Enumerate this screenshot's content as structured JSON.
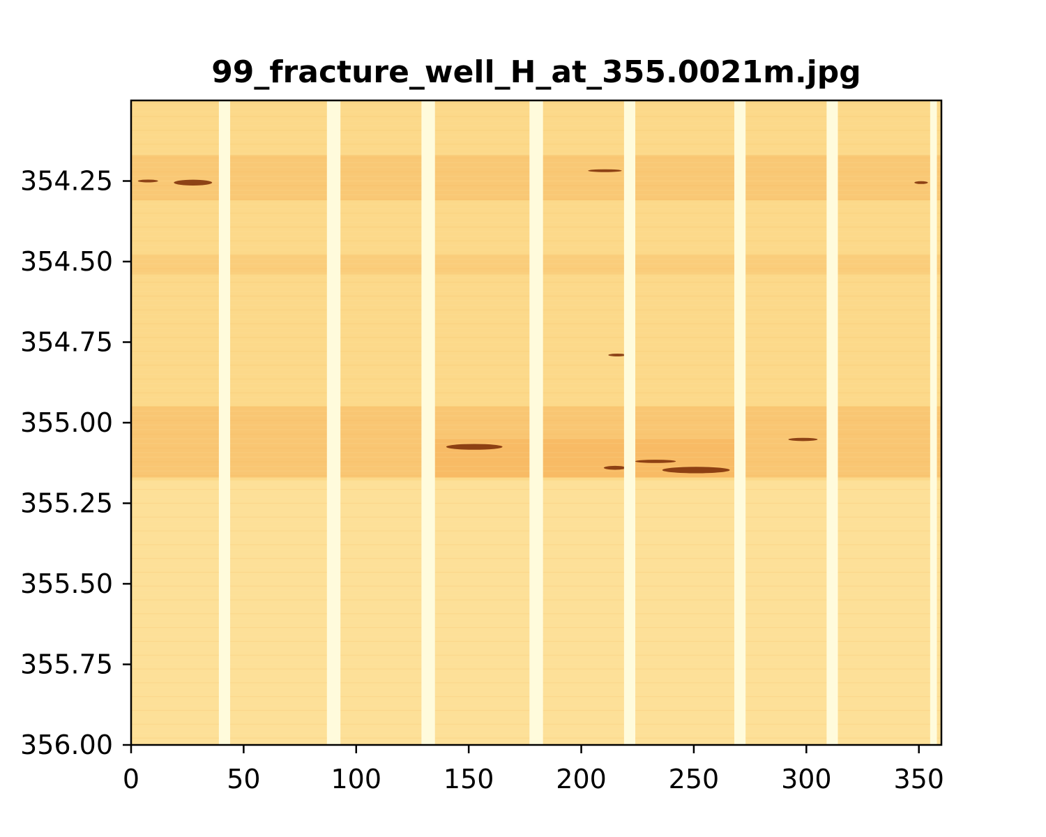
{
  "chart_data": {
    "type": "heatmap",
    "title": "99_fracture_well_H_at_355.0021m.jpg",
    "xlabel": "",
    "ylabel": "",
    "xlim": [
      0,
      360
    ],
    "ylim": [
      356.0,
      354.0
    ],
    "x_ticks": [
      0,
      50,
      100,
      150,
      200,
      250,
      300,
      350
    ],
    "x_tick_labels": [
      "0",
      "50",
      "100",
      "150",
      "200",
      "250",
      "300",
      "350"
    ],
    "y_ticks": [
      354.25,
      354.5,
      354.75,
      355.0,
      355.25,
      355.5,
      355.75,
      356.0
    ],
    "y_tick_labels": [
      "354.25",
      "354.50",
      "354.75",
      "355.00",
      "355.25",
      "355.50",
      "355.75",
      "356.00"
    ],
    "grid": false,
    "colormap": "YlOrBr",
    "colors": {
      "background": "#fcd98a",
      "light": "#fde6a4",
      "gap": "#fffbdc",
      "medium": "#f6b45b",
      "dark": "#7a2a05"
    },
    "pad_gaps": [
      {
        "x0": 39,
        "x1": 44
      },
      {
        "x0": 87,
        "x1": 93
      },
      {
        "x0": 129,
        "x1": 135
      },
      {
        "x0": 177,
        "x1": 183
      },
      {
        "x0": 219,
        "x1": 224
      },
      {
        "x0": 268,
        "x1": 273
      },
      {
        "x0": 309,
        "x1": 314
      },
      {
        "x0": 355,
        "x1": 358
      }
    ],
    "bands": [
      {
        "x0": 0,
        "x1": 360,
        "y0": 354.17,
        "y1": 354.31,
        "tone": "medium",
        "opacity": 0.45
      },
      {
        "x0": 0,
        "x1": 360,
        "y0": 354.48,
        "y1": 354.54,
        "tone": "medium",
        "opacity": 0.3
      },
      {
        "x0": 0,
        "x1": 360,
        "y0": 354.95,
        "y1": 355.17,
        "tone": "medium",
        "opacity": 0.5
      },
      {
        "x0": 130,
        "x1": 270,
        "y0": 355.05,
        "y1": 355.17,
        "tone": "medium",
        "opacity": 0.6
      },
      {
        "x0": 0,
        "x1": 360,
        "y0": 355.18,
        "y1": 356.0,
        "tone": "light",
        "opacity": 0.55
      }
    ],
    "fracture_marks": [
      {
        "x0": 3,
        "x1": 12,
        "y": 354.25,
        "thickness": 0.008
      },
      {
        "x0": 19,
        "x1": 36,
        "y": 354.255,
        "thickness": 0.018
      },
      {
        "x0": 203,
        "x1": 218,
        "y": 354.218,
        "thickness": 0.008
      },
      {
        "x0": 348,
        "x1": 354,
        "y": 354.255,
        "thickness": 0.008
      },
      {
        "x0": 140,
        "x1": 165,
        "y": 355.075,
        "thickness": 0.018
      },
      {
        "x0": 210,
        "x1": 220,
        "y": 355.14,
        "thickness": 0.012
      },
      {
        "x0": 224,
        "x1": 242,
        "y": 355.12,
        "thickness": 0.01
      },
      {
        "x0": 236,
        "x1": 266,
        "y": 355.147,
        "thickness": 0.02
      },
      {
        "x0": 292,
        "x1": 305,
        "y": 355.052,
        "thickness": 0.01
      },
      {
        "x0": 212,
        "x1": 220,
        "y": 354.79,
        "thickness": 0.005
      }
    ]
  }
}
